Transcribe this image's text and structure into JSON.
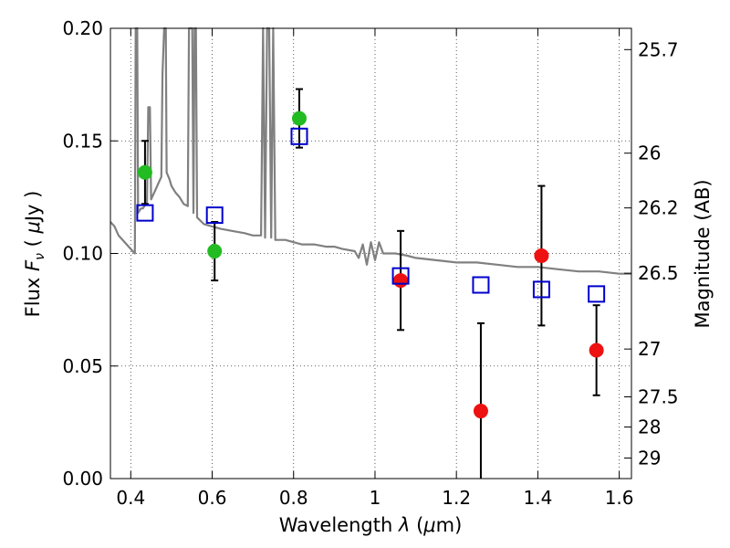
{
  "chart_data": {
    "type": "scatter",
    "xlabel": "Wavelength  λ (μm)",
    "ylabel": "Flux  F_ν  ( μJy )",
    "ylabel_parts": {
      "pre": "Flux  ",
      "var": "F",
      "sub": "ν",
      "mid": "  ( ",
      "mu": "μ",
      "post": "Jy )"
    },
    "xlabel_parts": {
      "pre": "Wavelength  ",
      "var": "λ",
      "mid": " (",
      "mu": "μ",
      "post": "m)"
    },
    "y2label": "Magnitude (AB)",
    "xlim": [
      0.35,
      1.63
    ],
    "ylim": [
      0.0,
      0.2
    ],
    "grid": true,
    "x_ticks": [
      0.4,
      0.6,
      0.8,
      1.0,
      1.2,
      1.4,
      1.6
    ],
    "x_tick_labels": [
      "0.4",
      "0.6",
      "0.8",
      "1",
      "1.2",
      "1.4",
      "1.6"
    ],
    "y_ticks": [
      0.0,
      0.05,
      0.1,
      0.15,
      0.2
    ],
    "y_tick_labels": [
      "0.00",
      "0.05",
      "0.10",
      "0.15",
      "0.20"
    ],
    "mag_ticks": [
      "25.7",
      "26",
      "26.2",
      "26.5",
      "27",
      "27.5",
      "28",
      "29"
    ],
    "colors": {
      "optical_points": "#22bb22",
      "nir_points": "#ee1111",
      "model_boxes": "#0000cc",
      "spectrum": "#808080",
      "errorbar": "#000000"
    },
    "series": [
      {
        "marker": "green-circle",
        "points": [
          {
            "x": 0.435,
            "y": 0.136,
            "yerr": 0.014
          },
          {
            "x": 0.606,
            "y": 0.101,
            "yerr": 0.013
          },
          {
            "x": 0.814,
            "y": 0.16,
            "yerr": 0.013
          }
        ]
      },
      {
        "marker": "red-circle",
        "points": [
          {
            "x": 1.063,
            "y": 0.088,
            "yerr": 0.022
          },
          {
            "x": 1.26,
            "y": 0.03,
            "yerr": 0.039
          },
          {
            "x": 1.409,
            "y": 0.099,
            "yerr": 0.031
          },
          {
            "x": 1.544,
            "y": 0.057,
            "yerr": 0.02
          }
        ]
      },
      {
        "marker": "blue-square",
        "points": [
          {
            "x": 0.435,
            "y": 0.118
          },
          {
            "x": 0.606,
            "y": 0.117
          },
          {
            "x": 0.814,
            "y": 0.152
          },
          {
            "x": 1.063,
            "y": 0.09
          },
          {
            "x": 1.26,
            "y": 0.086
          },
          {
            "x": 1.409,
            "y": 0.084
          },
          {
            "x": 1.544,
            "y": 0.082
          }
        ]
      }
    ],
    "spectrum": [
      [
        0.35,
        0.114
      ],
      [
        0.36,
        0.112
      ],
      [
        0.37,
        0.108
      ],
      [
        0.38,
        0.106
      ],
      [
        0.39,
        0.104
      ],
      [
        0.4,
        0.102
      ],
      [
        0.405,
        0.101
      ],
      [
        0.41,
        0.1
      ],
      [
        0.412,
        0.2
      ],
      [
        0.416,
        0.2
      ],
      [
        0.418,
        0.118
      ],
      [
        0.425,
        0.12
      ],
      [
        0.43,
        0.12
      ],
      [
        0.44,
        0.123
      ],
      [
        0.443,
        0.165
      ],
      [
        0.447,
        0.165
      ],
      [
        0.45,
        0.124
      ],
      [
        0.455,
        0.126
      ],
      [
        0.46,
        0.128
      ],
      [
        0.465,
        0.13
      ],
      [
        0.47,
        0.132
      ],
      [
        0.475,
        0.134
      ],
      [
        0.478,
        0.18
      ],
      [
        0.482,
        0.2
      ],
      [
        0.486,
        0.2
      ],
      [
        0.488,
        0.136
      ],
      [
        0.495,
        0.133
      ],
      [
        0.5,
        0.13
      ],
      [
        0.51,
        0.127
      ],
      [
        0.52,
        0.125
      ],
      [
        0.53,
        0.122
      ],
      [
        0.54,
        0.121
      ],
      [
        0.543,
        0.2
      ],
      [
        0.548,
        0.2
      ],
      [
        0.551,
        0.2
      ],
      [
        0.554,
        0.118
      ],
      [
        0.557,
        0.2
      ],
      [
        0.56,
        0.2
      ],
      [
        0.563,
        0.116
      ],
      [
        0.58,
        0.113
      ],
      [
        0.6,
        0.112
      ],
      [
        0.62,
        0.111
      ],
      [
        0.65,
        0.11
      ],
      [
        0.68,
        0.109
      ],
      [
        0.7,
        0.108
      ],
      [
        0.72,
        0.108
      ],
      [
        0.725,
        0.2
      ],
      [
        0.73,
        0.107
      ],
      [
        0.735,
        0.2
      ],
      [
        0.74,
        0.2
      ],
      [
        0.745,
        0.107
      ],
      [
        0.75,
        0.2
      ],
      [
        0.755,
        0.106
      ],
      [
        0.78,
        0.106
      ],
      [
        0.8,
        0.105
      ],
      [
        0.82,
        0.104
      ],
      [
        0.85,
        0.104
      ],
      [
        0.88,
        0.103
      ],
      [
        0.9,
        0.103
      ],
      [
        0.92,
        0.102
      ],
      [
        0.95,
        0.101
      ],
      [
        0.96,
        0.098
      ],
      [
        0.97,
        0.104
      ],
      [
        0.98,
        0.095
      ],
      [
        0.99,
        0.105
      ],
      [
        1.0,
        0.097
      ],
      [
        1.01,
        0.105
      ],
      [
        1.02,
        0.1
      ],
      [
        1.05,
        0.1
      ],
      [
        1.08,
        0.099
      ],
      [
        1.1,
        0.098
      ],
      [
        1.15,
        0.097
      ],
      [
        1.2,
        0.096
      ],
      [
        1.25,
        0.096
      ],
      [
        1.3,
        0.095
      ],
      [
        1.35,
        0.094
      ],
      [
        1.4,
        0.094
      ],
      [
        1.45,
        0.093
      ],
      [
        1.5,
        0.092
      ],
      [
        1.55,
        0.092
      ],
      [
        1.6,
        0.091
      ],
      [
        1.63,
        0.091
      ]
    ]
  }
}
